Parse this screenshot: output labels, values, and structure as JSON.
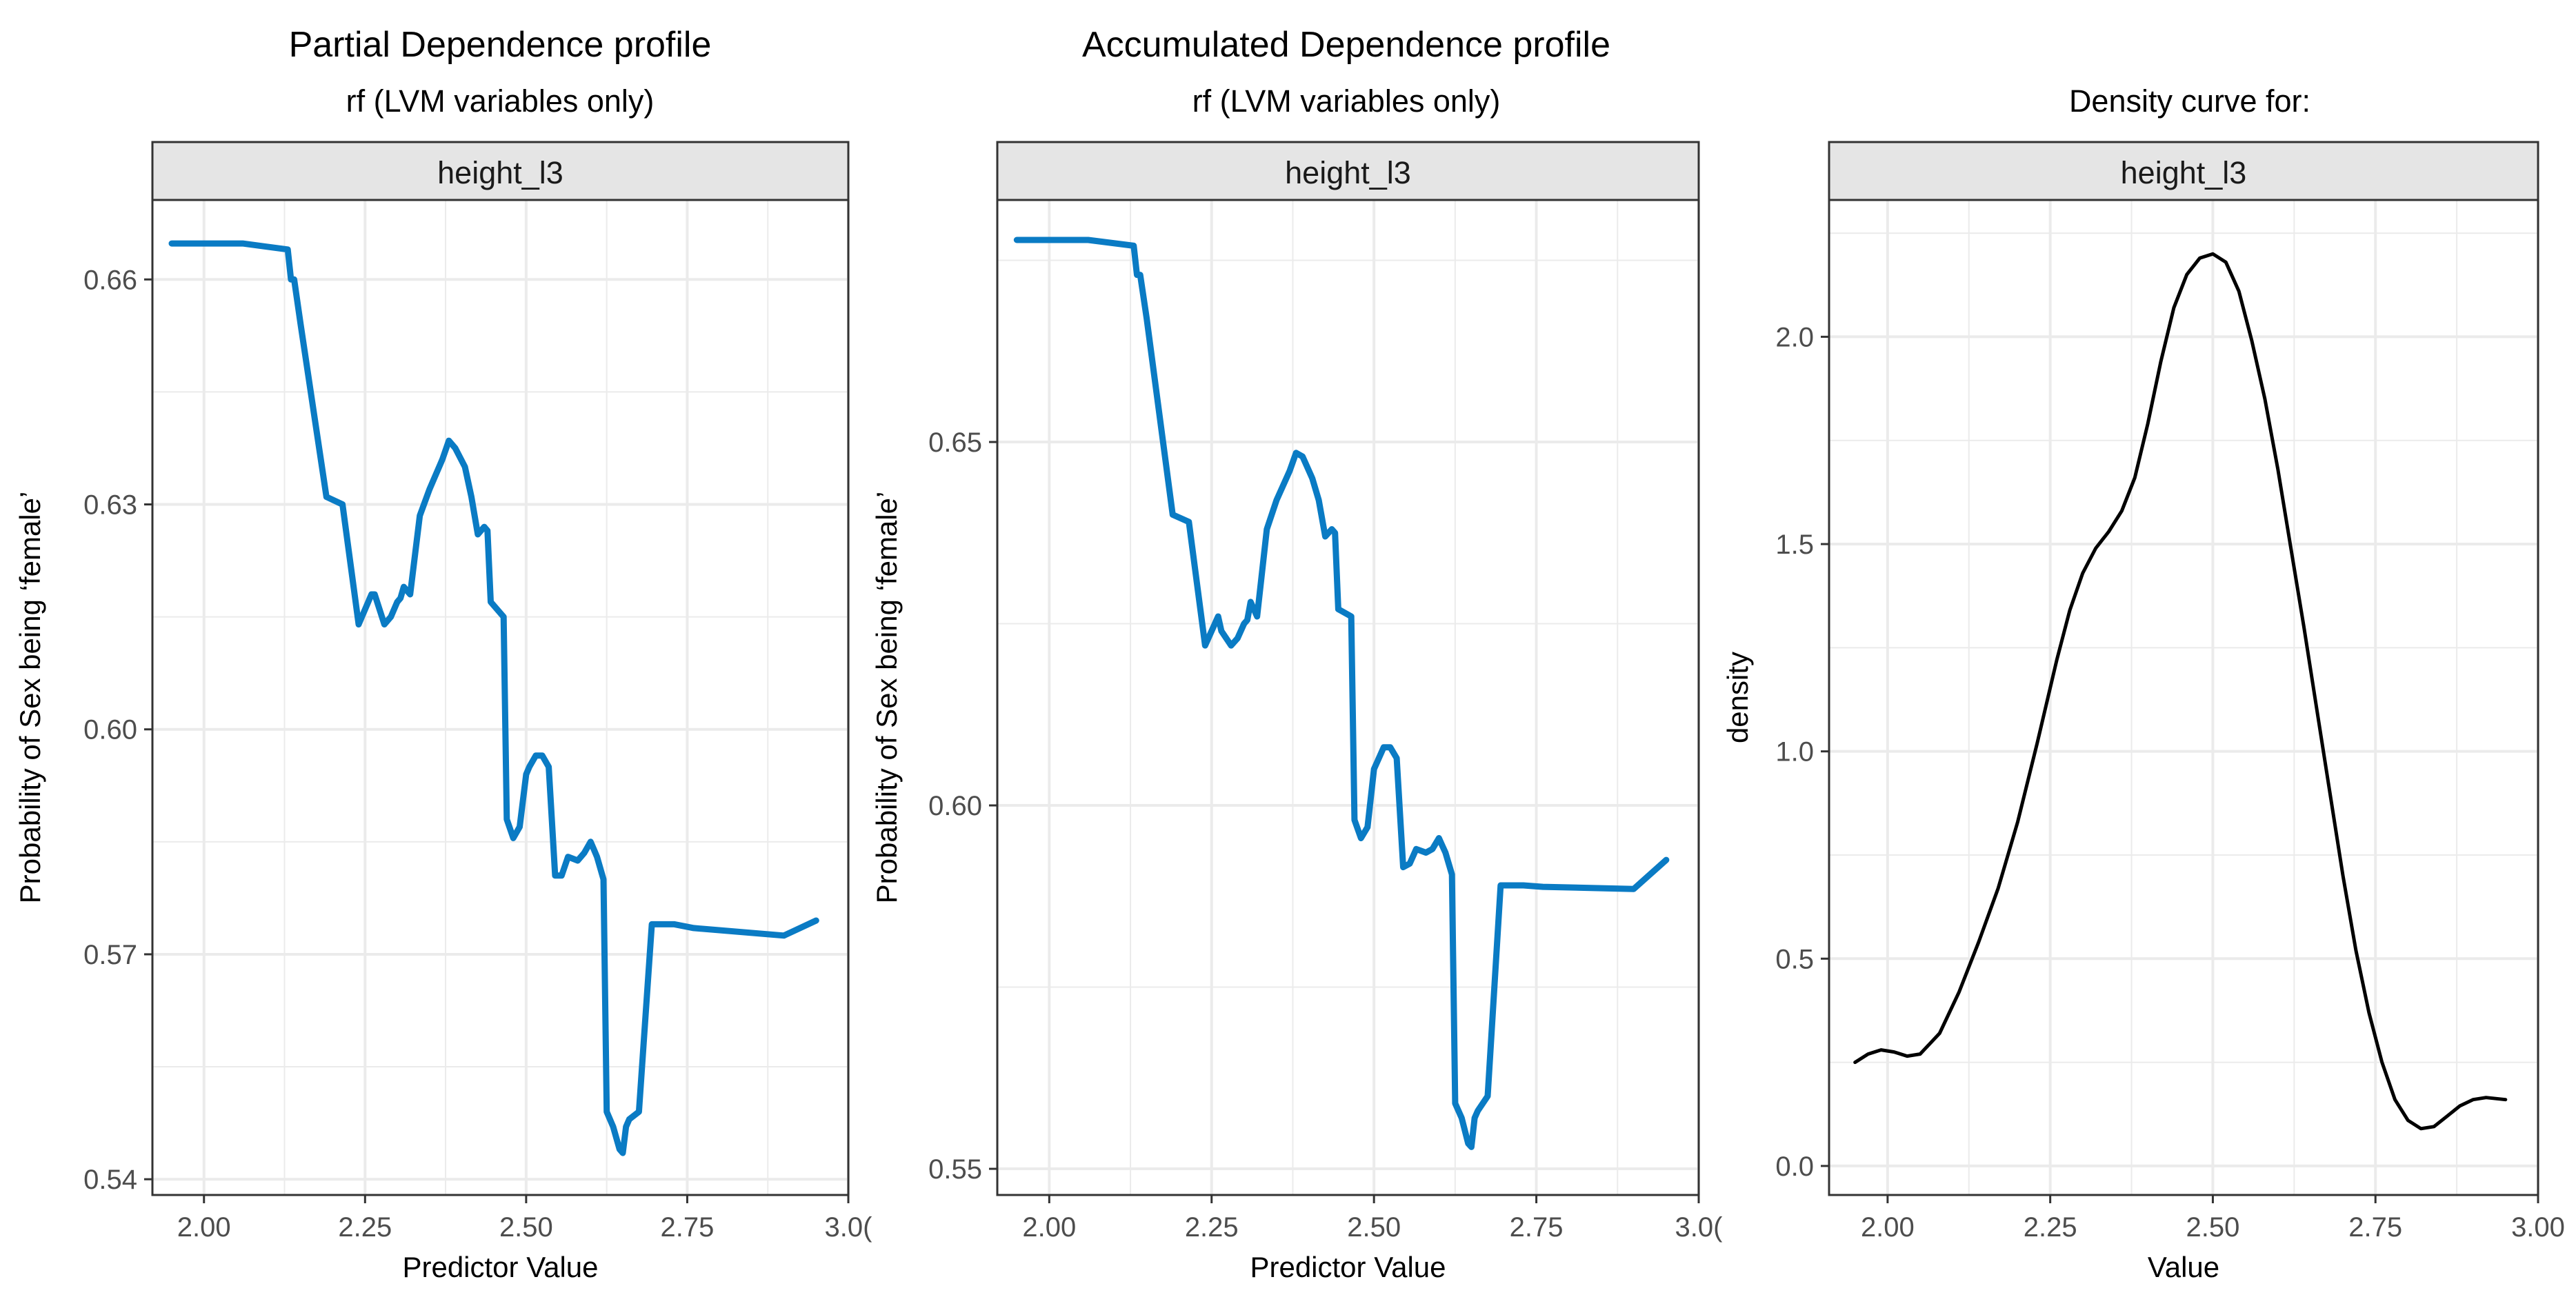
{
  "colors": {
    "pd_line": "#0A7BC4",
    "density_line": "#000000",
    "strip_fill": "#E5E5E5",
    "panel_border": "#333333",
    "grid": "#EBEBEB"
  },
  "chart_data": [
    {
      "type": "line",
      "title": "Partial Dependence profile",
      "subtitle": "rf (LVM variables only)",
      "facet": "height_l3",
      "xlabel": "Predictor Value",
      "ylabel": "Probability of Sex being ‘female’",
      "xlim": [
        1.92,
        3.0
      ],
      "ylim": [
        0.5379,
        0.6706
      ],
      "xticks": [
        2.0,
        2.25,
        2.5,
        2.75,
        3.0
      ],
      "xtick_labels": [
        "2.00",
        "2.25",
        "2.50",
        "2.75",
        "3.0("
      ],
      "yticks": [
        0.54,
        0.57,
        0.6,
        0.63,
        0.66
      ],
      "ytick_labels": [
        "0.54",
        "0.57",
        "0.60",
        "0.63",
        "0.66"
      ],
      "grid": true,
      "series": [
        {
          "x": [
            1.95,
            2.06,
            2.13,
            2.135,
            2.14,
            2.15,
            2.19,
            2.215,
            2.24,
            2.26,
            2.265,
            2.28,
            2.29,
            2.3,
            2.305,
            2.31,
            2.32,
            2.335,
            2.35,
            2.37,
            2.38,
            2.39,
            2.405,
            2.415,
            2.425,
            2.435,
            2.44,
            2.445,
            2.465,
            2.47,
            2.48,
            2.49,
            2.5,
            2.505,
            2.515,
            2.525,
            2.535,
            2.545,
            2.555,
            2.565,
            2.58,
            2.59,
            2.6,
            2.605,
            2.61,
            2.62,
            2.625,
            2.635,
            2.645,
            2.65,
            2.655,
            2.66,
            2.675,
            2.695,
            2.73,
            2.76,
            2.9,
            2.95
          ],
          "y": [
            0.6648,
            0.6648,
            0.664,
            0.66,
            0.66,
            0.654,
            0.631,
            0.63,
            0.614,
            0.618,
            0.618,
            0.614,
            0.615,
            0.617,
            0.6175,
            0.619,
            0.618,
            0.6285,
            0.632,
            0.636,
            0.6385,
            0.6375,
            0.635,
            0.631,
            0.626,
            0.627,
            0.6265,
            0.617,
            0.615,
            0.588,
            0.5855,
            0.587,
            0.594,
            0.595,
            0.5965,
            0.5965,
            0.595,
            0.5805,
            0.5805,
            0.583,
            0.5825,
            0.5835,
            0.585,
            0.584,
            0.583,
            0.58,
            0.549,
            0.547,
            0.544,
            0.5435,
            0.547,
            0.548,
            0.549,
            0.574,
            0.574,
            0.5735,
            0.5725,
            0.5745
          ]
        }
      ]
    },
    {
      "type": "line",
      "title": "Accumulated Dependence profile",
      "subtitle": "rf (LVM variables only)",
      "facet": "height_l3",
      "xlabel": "Predictor Value",
      "ylabel": "Probability of Sex being ‘female’",
      "xlim": [
        1.92,
        3.0
      ],
      "ylim": [
        0.5464,
        0.6833
      ],
      "xticks": [
        2.0,
        2.25,
        2.5,
        2.75,
        3.0
      ],
      "xtick_labels": [
        "2.00",
        "2.25",
        "2.50",
        "2.75",
        "3.0("
      ],
      "yticks": [
        0.55,
        0.6,
        0.65
      ],
      "ytick_labels": [
        "0.55",
        "0.60",
        "0.65"
      ],
      "grid": true,
      "series": [
        {
          "x": [
            1.95,
            2.06,
            2.13,
            2.135,
            2.14,
            2.15,
            2.19,
            2.215,
            2.24,
            2.26,
            2.265,
            2.28,
            2.29,
            2.3,
            2.305,
            2.31,
            2.32,
            2.335,
            2.35,
            2.37,
            2.38,
            2.39,
            2.405,
            2.415,
            2.425,
            2.435,
            2.44,
            2.445,
            2.465,
            2.47,
            2.48,
            2.49,
            2.5,
            2.505,
            2.515,
            2.525,
            2.535,
            2.545,
            2.555,
            2.565,
            2.58,
            2.59,
            2.6,
            2.605,
            2.61,
            2.62,
            2.625,
            2.635,
            2.645,
            2.65,
            2.655,
            2.66,
            2.675,
            2.695,
            2.73,
            2.76,
            2.9,
            2.95
          ],
          "y": [
            0.6778,
            0.6778,
            0.677,
            0.673,
            0.673,
            0.667,
            0.64,
            0.639,
            0.622,
            0.626,
            0.624,
            0.622,
            0.623,
            0.625,
            0.6255,
            0.628,
            0.626,
            0.638,
            0.642,
            0.646,
            0.6485,
            0.648,
            0.645,
            0.642,
            0.637,
            0.638,
            0.6375,
            0.627,
            0.626,
            0.598,
            0.5955,
            0.597,
            0.605,
            0.606,
            0.608,
            0.608,
            0.6065,
            0.5915,
            0.592,
            0.594,
            0.5935,
            0.594,
            0.5955,
            0.5945,
            0.5935,
            0.5905,
            0.559,
            0.557,
            0.5535,
            0.553,
            0.557,
            0.558,
            0.56,
            0.589,
            0.589,
            0.5888,
            0.5885,
            0.5925
          ]
        }
      ]
    },
    {
      "type": "line",
      "title": "",
      "subtitle": "Density curve for:",
      "facet": "height_l3",
      "xlabel": "Value",
      "ylabel": "density",
      "xlim": [
        1.91,
        3.0
      ],
      "ylim": [
        -0.07,
        2.33
      ],
      "xticks": [
        2.0,
        2.25,
        2.5,
        2.75,
        3.0
      ],
      "xtick_labels": [
        "2.00",
        "2.25",
        "2.50",
        "2.75",
        "3.00"
      ],
      "yticks": [
        0.0,
        0.5,
        1.0,
        1.5,
        2.0
      ],
      "ytick_labels": [
        "0.0",
        "0.5",
        "1.0",
        "1.5",
        "2.0"
      ],
      "grid": true,
      "series": [
        {
          "x": [
            1.95,
            1.97,
            1.99,
            2.01,
            2.03,
            2.05,
            2.08,
            2.11,
            2.14,
            2.17,
            2.2,
            2.23,
            2.26,
            2.28,
            2.3,
            2.32,
            2.34,
            2.36,
            2.38,
            2.4,
            2.42,
            2.44,
            2.46,
            2.48,
            2.5,
            2.52,
            2.54,
            2.56,
            2.58,
            2.6,
            2.62,
            2.64,
            2.66,
            2.68,
            2.7,
            2.72,
            2.74,
            2.76,
            2.78,
            2.8,
            2.82,
            2.84,
            2.86,
            2.88,
            2.9,
            2.92,
            2.95
          ],
          "y": [
            0.25,
            0.27,
            0.28,
            0.275,
            0.265,
            0.27,
            0.32,
            0.42,
            0.54,
            0.67,
            0.83,
            1.02,
            1.22,
            1.34,
            1.43,
            1.49,
            1.53,
            1.58,
            1.66,
            1.79,
            1.94,
            2.07,
            2.15,
            2.19,
            2.2,
            2.18,
            2.11,
            1.99,
            1.85,
            1.68,
            1.49,
            1.3,
            1.1,
            0.9,
            0.7,
            0.52,
            0.37,
            0.25,
            0.16,
            0.11,
            0.09,
            0.095,
            0.12,
            0.145,
            0.16,
            0.165,
            0.16
          ]
        }
      ]
    }
  ]
}
